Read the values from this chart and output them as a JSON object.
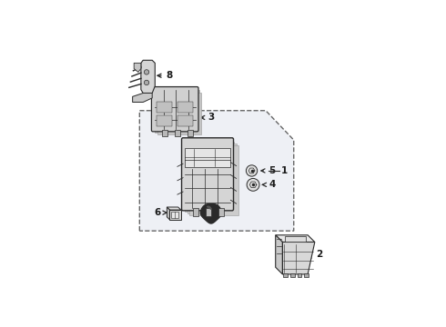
{
  "background_color": "#ffffff",
  "panel_color": "#eef0f5",
  "panel_border_color": "#666666",
  "line_color": "#2a2a2a",
  "component_color": "#2a2a2a",
  "callout_color": "#1a1a1a",
  "shadow_color": "#bbbbbb",
  "mid_color": "#888888"
}
